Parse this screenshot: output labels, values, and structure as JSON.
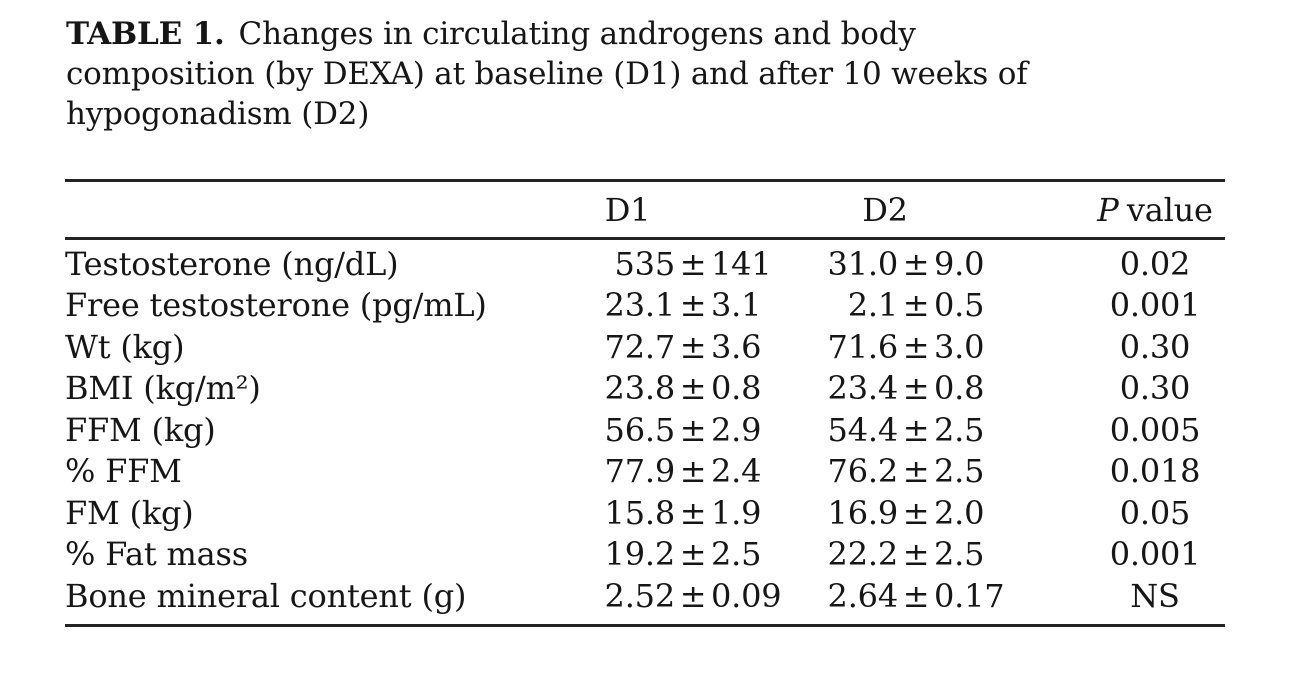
{
  "caption": {
    "label": "TABLE 1.",
    "lines": [
      "Changes in circulating androgens and body",
      "composition (by DEXA) at baseline (D1) and after 10 weeks of",
      "hypogonadism (D2)"
    ]
  },
  "table": {
    "pm_symbol": "±",
    "headers": {
      "row_label": "",
      "d1": "D1",
      "d2": "D2",
      "p_symbol": "P",
      "p_rest": "value"
    },
    "rows": [
      {
        "label": "Testosterone (ng/dL)",
        "d1m": "535",
        "d1s": "141",
        "d2m": "31.0",
        "d2s": "9.0",
        "p": "0.02"
      },
      {
        "label": "Free testosterone (pg/mL)",
        "d1m": "23.1",
        "d1s": "3.1",
        "d2m": "2.1",
        "d2s": "0.5",
        "p": "0.001"
      },
      {
        "label": "Wt (kg)",
        "d1m": "72.7",
        "d1s": "3.6",
        "d2m": "71.6",
        "d2s": "3.0",
        "p": "0.30"
      },
      {
        "label": "BMI (kg/m²)",
        "d1m": "23.8",
        "d1s": "0.8",
        "d2m": "23.4",
        "d2s": "0.8",
        "p": "0.30"
      },
      {
        "label": "FFM (kg)",
        "d1m": "56.5",
        "d1s": "2.9",
        "d2m": "54.4",
        "d2s": "2.5",
        "p": "0.005"
      },
      {
        "label": "% FFM",
        "d1m": "77.9",
        "d1s": "2.4",
        "d2m": "76.2",
        "d2s": "2.5",
        "p": "0.018"
      },
      {
        "label": "FM (kg)",
        "d1m": "15.8",
        "d1s": "1.9",
        "d2m": "16.9",
        "d2s": "2.0",
        "p": "0.05"
      },
      {
        "label": "% Fat mass",
        "d1m": "19.2",
        "d1s": "2.5",
        "d2m": "22.2",
        "d2s": "2.5",
        "p": "0.001"
      },
      {
        "label": "Bone mineral content (g)",
        "d1m": "2.52",
        "d1s": "0.09",
        "d2m": "2.64",
        "d2s": "0.17",
        "p": "NS"
      }
    ]
  },
  "colors": {
    "background": "#ffffff",
    "text": "#161616",
    "rule": "#232323"
  }
}
